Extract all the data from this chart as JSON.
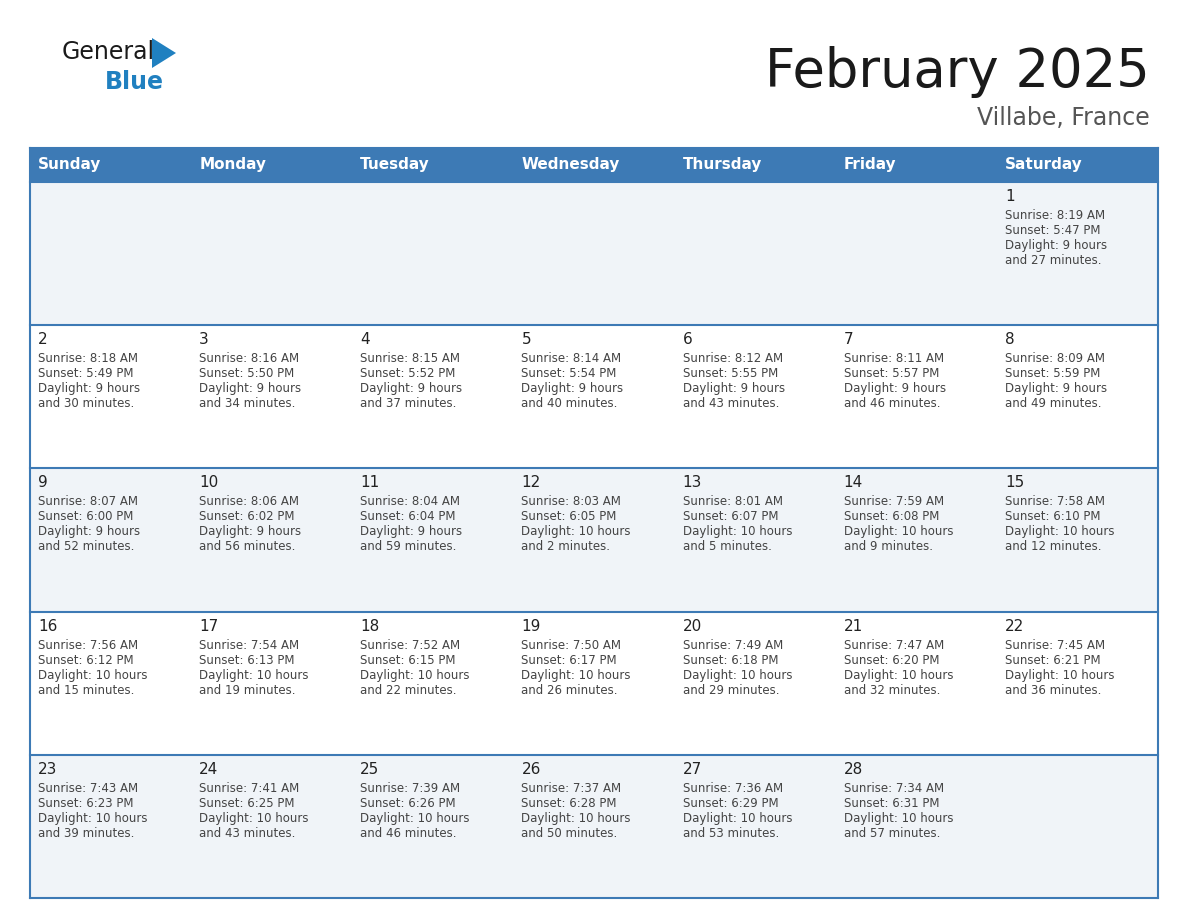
{
  "title": "February 2025",
  "subtitle": "Villabe, France",
  "header_bg": "#3d7ab5",
  "header_text": "#ffffff",
  "cell_bg_light": "#f0f4f8",
  "cell_bg_white": "#ffffff",
  "line_color": "#3d7ab5",
  "day_names": [
    "Sunday",
    "Monday",
    "Tuesday",
    "Wednesday",
    "Thursday",
    "Friday",
    "Saturday"
  ],
  "days": [
    {
      "day": 1,
      "col": 6,
      "row": 0,
      "sunrise": "8:19 AM",
      "sunset": "5:47 PM",
      "daylight": "9 hours and 27 minutes."
    },
    {
      "day": 2,
      "col": 0,
      "row": 1,
      "sunrise": "8:18 AM",
      "sunset": "5:49 PM",
      "daylight": "9 hours and 30 minutes."
    },
    {
      "day": 3,
      "col": 1,
      "row": 1,
      "sunrise": "8:16 AM",
      "sunset": "5:50 PM",
      "daylight": "9 hours and 34 minutes."
    },
    {
      "day": 4,
      "col": 2,
      "row": 1,
      "sunrise": "8:15 AM",
      "sunset": "5:52 PM",
      "daylight": "9 hours and 37 minutes."
    },
    {
      "day": 5,
      "col": 3,
      "row": 1,
      "sunrise": "8:14 AM",
      "sunset": "5:54 PM",
      "daylight": "9 hours and 40 minutes."
    },
    {
      "day": 6,
      "col": 4,
      "row": 1,
      "sunrise": "8:12 AM",
      "sunset": "5:55 PM",
      "daylight": "9 hours and 43 minutes."
    },
    {
      "day": 7,
      "col": 5,
      "row": 1,
      "sunrise": "8:11 AM",
      "sunset": "5:57 PM",
      "daylight": "9 hours and 46 minutes."
    },
    {
      "day": 8,
      "col": 6,
      "row": 1,
      "sunrise": "8:09 AM",
      "sunset": "5:59 PM",
      "daylight": "9 hours and 49 minutes."
    },
    {
      "day": 9,
      "col": 0,
      "row": 2,
      "sunrise": "8:07 AM",
      "sunset": "6:00 PM",
      "daylight": "9 hours and 52 minutes."
    },
    {
      "day": 10,
      "col": 1,
      "row": 2,
      "sunrise": "8:06 AM",
      "sunset": "6:02 PM",
      "daylight": "9 hours and 56 minutes."
    },
    {
      "day": 11,
      "col": 2,
      "row": 2,
      "sunrise": "8:04 AM",
      "sunset": "6:04 PM",
      "daylight": "9 hours and 59 minutes."
    },
    {
      "day": 12,
      "col": 3,
      "row": 2,
      "sunrise": "8:03 AM",
      "sunset": "6:05 PM",
      "daylight": "10 hours and 2 minutes."
    },
    {
      "day": 13,
      "col": 4,
      "row": 2,
      "sunrise": "8:01 AM",
      "sunset": "6:07 PM",
      "daylight": "10 hours and 5 minutes."
    },
    {
      "day": 14,
      "col": 5,
      "row": 2,
      "sunrise": "7:59 AM",
      "sunset": "6:08 PM",
      "daylight": "10 hours and 9 minutes."
    },
    {
      "day": 15,
      "col": 6,
      "row": 2,
      "sunrise": "7:58 AM",
      "sunset": "6:10 PM",
      "daylight": "10 hours and 12 minutes."
    },
    {
      "day": 16,
      "col": 0,
      "row": 3,
      "sunrise": "7:56 AM",
      "sunset": "6:12 PM",
      "daylight": "10 hours and 15 minutes."
    },
    {
      "day": 17,
      "col": 1,
      "row": 3,
      "sunrise": "7:54 AM",
      "sunset": "6:13 PM",
      "daylight": "10 hours and 19 minutes."
    },
    {
      "day": 18,
      "col": 2,
      "row": 3,
      "sunrise": "7:52 AM",
      "sunset": "6:15 PM",
      "daylight": "10 hours and 22 minutes."
    },
    {
      "day": 19,
      "col": 3,
      "row": 3,
      "sunrise": "7:50 AM",
      "sunset": "6:17 PM",
      "daylight": "10 hours and 26 minutes."
    },
    {
      "day": 20,
      "col": 4,
      "row": 3,
      "sunrise": "7:49 AM",
      "sunset": "6:18 PM",
      "daylight": "10 hours and 29 minutes."
    },
    {
      "day": 21,
      "col": 5,
      "row": 3,
      "sunrise": "7:47 AM",
      "sunset": "6:20 PM",
      "daylight": "10 hours and 32 minutes."
    },
    {
      "day": 22,
      "col": 6,
      "row": 3,
      "sunrise": "7:45 AM",
      "sunset": "6:21 PM",
      "daylight": "10 hours and 36 minutes."
    },
    {
      "day": 23,
      "col": 0,
      "row": 4,
      "sunrise": "7:43 AM",
      "sunset": "6:23 PM",
      "daylight": "10 hours and 39 minutes."
    },
    {
      "day": 24,
      "col": 1,
      "row": 4,
      "sunrise": "7:41 AM",
      "sunset": "6:25 PM",
      "daylight": "10 hours and 43 minutes."
    },
    {
      "day": 25,
      "col": 2,
      "row": 4,
      "sunrise": "7:39 AM",
      "sunset": "6:26 PM",
      "daylight": "10 hours and 46 minutes."
    },
    {
      "day": 26,
      "col": 3,
      "row": 4,
      "sunrise": "7:37 AM",
      "sunset": "6:28 PM",
      "daylight": "10 hours and 50 minutes."
    },
    {
      "day": 27,
      "col": 4,
      "row": 4,
      "sunrise": "7:36 AM",
      "sunset": "6:29 PM",
      "daylight": "10 hours and 53 minutes."
    },
    {
      "day": 28,
      "col": 5,
      "row": 4,
      "sunrise": "7:34 AM",
      "sunset": "6:31 PM",
      "daylight": "10 hours and 57 minutes."
    }
  ],
  "num_rows": 5,
  "num_cols": 7,
  "logo_color_general": "#1a1a1a",
  "logo_color_blue": "#2080c0",
  "logo_triangle_color": "#2080c0",
  "title_color": "#1a1a1a",
  "subtitle_color": "#555555",
  "day_num_color": "#222222",
  "text_color": "#444444"
}
